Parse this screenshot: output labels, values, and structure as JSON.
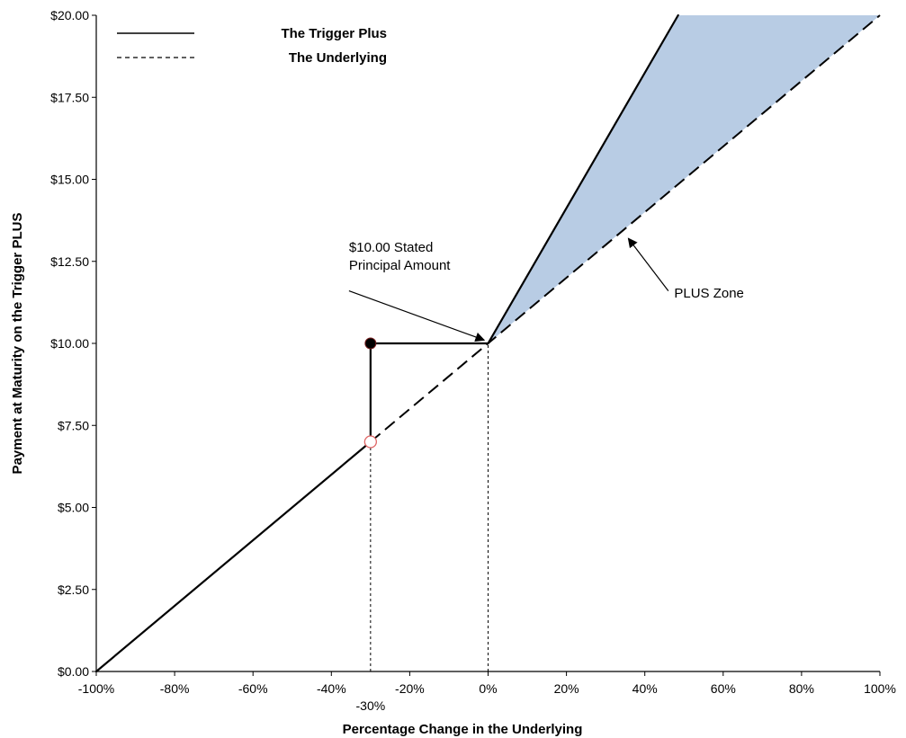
{
  "chart_data": {
    "type": "line",
    "xlabel": "Percentage Change in the Underlying",
    "ylabel": "Payment at Maturity on the Trigger PLUS",
    "xlim": [
      -100,
      100
    ],
    "ylim": [
      0,
      20
    ],
    "x_ticks": [
      -100,
      -80,
      -60,
      -40,
      -20,
      0,
      20,
      40,
      60,
      80,
      100
    ],
    "x_tick_labels": [
      "-100%",
      "-80%",
      "-60%",
      "-40%",
      "-20%",
      "0%",
      "20%",
      "40%",
      "60%",
      "80%",
      "100%"
    ],
    "y_ticks": [
      0,
      2.5,
      5,
      7.5,
      10,
      12.5,
      15,
      17.5,
      20
    ],
    "y_tick_labels": [
      "$0.00",
      "$2.50",
      "$5.00",
      "$7.50",
      "$10.00",
      "$12.50",
      "$15.00",
      "$17.50",
      "$20.00"
    ],
    "grid": false,
    "legend_position": "top-left",
    "colors": {
      "zone_fill": "#b8cce4",
      "line": "#000000",
      "circle_open": "#e06666",
      "axis": "#000000"
    },
    "series": [
      {
        "name": "The Trigger Plus",
        "style": "solid",
        "segments": [
          [
            [
              -100,
              0
            ],
            [
              -30,
              7
            ]
          ],
          [
            [
              -30,
              7
            ],
            [
              -30,
              10
            ]
          ],
          [
            [
              -30,
              10
            ],
            [
              0,
              10
            ]
          ],
          [
            [
              0,
              10
            ],
            [
              48.5,
              20
            ]
          ]
        ]
      },
      {
        "name": "The Underlying",
        "style": "dashed",
        "points": [
          [
            -30,
            7
          ],
          [
            100,
            20
          ]
        ]
      }
    ],
    "shaded_zone": {
      "points": [
        [
          0,
          10
        ],
        [
          48.5,
          20
        ],
        [
          100,
          20
        ]
      ]
    },
    "markers": [
      {
        "x": -30,
        "y": 10,
        "style": "filled"
      },
      {
        "x": -30,
        "y": 7,
        "style": "open"
      }
    ],
    "reference_lines": [
      {
        "x": -30,
        "y_from": 0,
        "y_to": 7
      },
      {
        "x": 0,
        "y_from": 0,
        "y_to": 10
      }
    ],
    "extra_x_label": {
      "x": -30,
      "text": "-30%"
    },
    "annotations": [
      {
        "lines": [
          "$10.00 Stated",
          "Principal Amount"
        ],
        "at": [
          -35.5,
          12.8
        ],
        "arrow_from": [
          -35.5,
          11.6
        ],
        "arrow_to": [
          -1,
          10.1
        ]
      },
      {
        "lines": [
          "PLUS Zone"
        ],
        "at": [
          47.5,
          11.4
        ],
        "arrow_from": [
          46,
          11.6
        ],
        "arrow_to": [
          35.8,
          13.2
        ]
      }
    ]
  }
}
